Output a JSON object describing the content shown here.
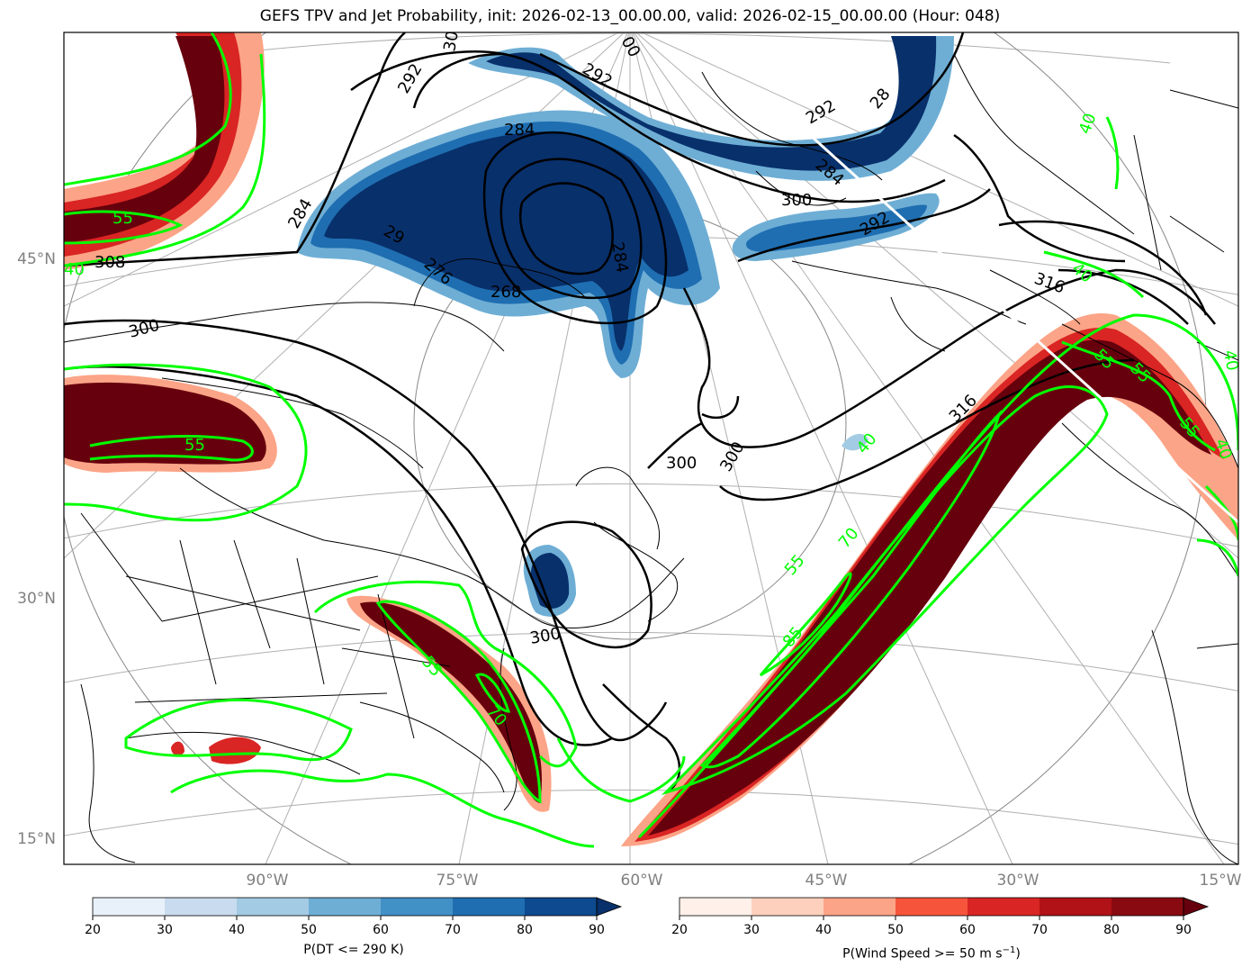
{
  "title": "GEFS TPV and Jet Probability, init: 2026-02-13_00.00.00, valid: 2026-02-15_00.00.00 (Hour: 048)",
  "map": {
    "lat_labels": [
      "45°N",
      "30°N",
      "15°N"
    ],
    "lon_labels": [
      "90°W",
      "75°W",
      "60°W",
      "45°W",
      "30°W",
      "15°W"
    ],
    "colors": {
      "jet_contour": "#00ff00",
      "theta_contour": "#000000",
      "coastline": "#000000",
      "graticule": "#b0b0b0"
    },
    "theta_contour_labels": [
      "292",
      "292",
      "292",
      "292",
      "284",
      "284",
      "284",
      "284",
      "276",
      "268",
      "300",
      "300",
      "300",
      "300",
      "300",
      "308",
      "316",
      "316",
      "28",
      "29",
      "30",
      "00"
    ],
    "jet_contour_labels": [
      "55",
      "55",
      "55",
      "55",
      "55",
      "55",
      "55",
      "70",
      "70",
      "85",
      "40",
      "40",
      "40",
      "40",
      "40",
      "40"
    ]
  },
  "colorbars": {
    "dt": {
      "label": "P(DT <= 290 K)",
      "ticks": [
        "20",
        "30",
        "40",
        "50",
        "60",
        "70",
        "80",
        "90"
      ],
      "colors": [
        "#e8f1fa",
        "#c9dcef",
        "#a3cbe3",
        "#6eaed5",
        "#4190c6",
        "#1f6eb1",
        "#0d4a8f",
        "#08306b"
      ]
    },
    "wind": {
      "label_prefix": "P(Wind Speed >= 50 m s",
      "label_exp": "−1",
      "label_suffix": ")",
      "ticks": [
        "20",
        "30",
        "40",
        "50",
        "60",
        "70",
        "80",
        "90"
      ],
      "colors": [
        "#fff0ea",
        "#fdd0bd",
        "#fca487",
        "#f6553c",
        "#d92523",
        "#b01217",
        "#8a0a12",
        "#67000d"
      ]
    }
  }
}
